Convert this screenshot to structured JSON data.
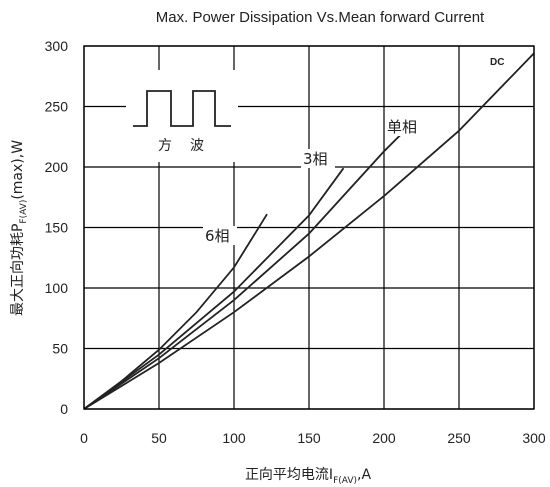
{
  "chart_data": {
    "type": "line",
    "title": "Max. Power Dissipation Vs.Mean forward Current",
    "ylabel": {
      "main": "最大正向功耗P",
      "sub": "F(AV)",
      "tail": "(max),W"
    },
    "xlabel": {
      "main": "正向平均电流I",
      "sub": "F(AV)",
      "tail": ",A"
    },
    "xlim": [
      0,
      300
    ],
    "ylim": [
      0,
      300
    ],
    "xticks": [
      "0",
      "50",
      "100",
      "150",
      "200",
      "250",
      "300"
    ],
    "yticks": [
      "0",
      "50",
      "100",
      "150",
      "200",
      "250",
      "300"
    ],
    "grid": true,
    "inset_label": [
      "方",
      "波"
    ],
    "series": [
      {
        "name": "6相",
        "x": [
          0,
          25,
          50,
          75,
          100,
          122
        ],
        "y": [
          0,
          23,
          49,
          80,
          117,
          161
        ]
      },
      {
        "name": "3相",
        "x": [
          0,
          50,
          100,
          150,
          173
        ],
        "y": [
          0,
          45,
          97,
          160,
          199
        ]
      },
      {
        "name": "单相",
        "x": [
          0,
          50,
          100,
          150,
          200,
          213
        ],
        "y": [
          0,
          42,
          90,
          145,
          213,
          229
        ]
      },
      {
        "name": "DC",
        "x": [
          0,
          50,
          100,
          150,
          200,
          250,
          300
        ],
        "y": [
          0,
          38,
          80,
          126,
          176,
          230,
          294
        ]
      }
    ]
  }
}
